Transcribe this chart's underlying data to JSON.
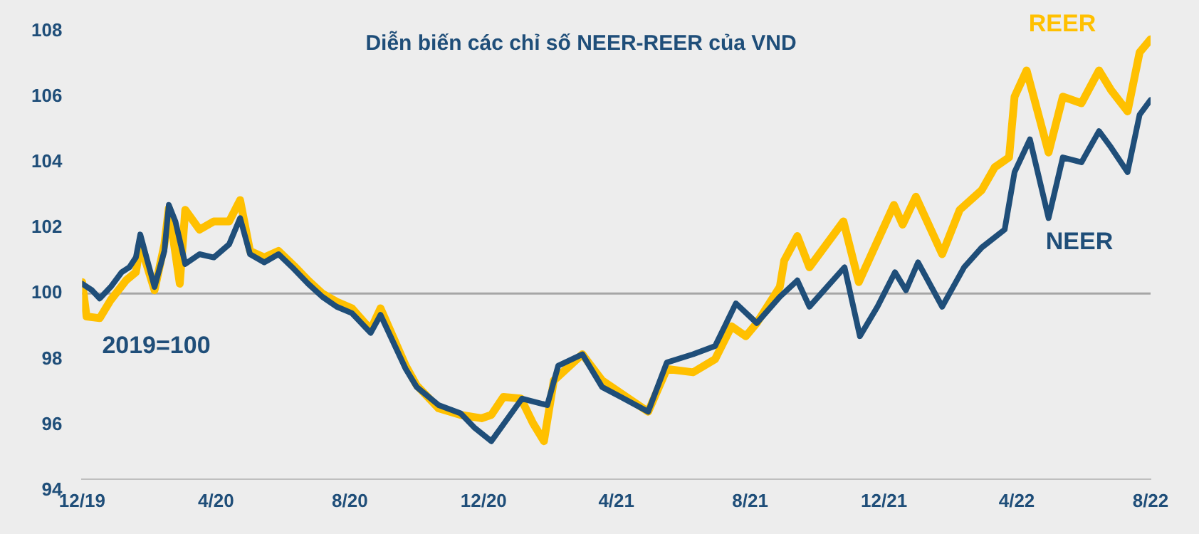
{
  "chart_data": {
    "type": "line",
    "title": "Diễn biến các chỉ số NEER-REER của VND",
    "annotations": [
      "2019=100"
    ],
    "xlim": [
      "2019-12-01",
      "2022-08-01"
    ],
    "xticks": [
      {
        "value": "2019-12",
        "label": "12/19"
      },
      {
        "value": "2020-04",
        "label": "4/20"
      },
      {
        "value": "2020-08",
        "label": "8/20"
      },
      {
        "value": "2020-12",
        "label": "12/20"
      },
      {
        "value": "2021-04",
        "label": "4/21"
      },
      {
        "value": "2021-08",
        "label": "8/21"
      },
      {
        "value": "2021-12",
        "label": "12/21"
      },
      {
        "value": "2022-04",
        "label": "4/22"
      },
      {
        "value": "2022-08",
        "label": "8/22"
      }
    ],
    "ylim": [
      94,
      108
    ],
    "yticks": [
      94,
      96,
      98,
      100,
      102,
      104,
      106,
      108
    ],
    "grid": false,
    "legend": false,
    "marker": "none",
    "line_style": "solid",
    "ref_lines": [
      {
        "axis": "y",
        "value": 100,
        "color": "#a6a6a6"
      }
    ],
    "series": [
      {
        "name": "NEER",
        "color": "#1f4e79",
        "x": [
          "2019-12-01",
          "2019-12-10",
          "2019-12-17",
          "2019-12-27",
          "2020-01-06",
          "2020-01-13",
          "2020-01-19",
          "2020-01-23",
          "2020-02-05",
          "2020-02-14",
          "2020-02-18",
          "2020-02-24",
          "2020-03-04",
          "2020-03-17",
          "2020-03-30",
          "2020-04-13",
          "2020-04-23",
          "2020-05-02",
          "2020-05-15",
          "2020-05-28",
          "2020-06-11",
          "2020-06-24",
          "2020-07-07",
          "2020-07-20",
          "2020-08-03",
          "2020-08-20",
          "2020-08-29",
          "2020-09-21",
          "2020-10-01",
          "2020-10-21",
          "2020-11-10",
          "2020-11-23",
          "2020-12-08",
          "2021-01-05",
          "2021-01-28",
          "2021-02-07",
          "2021-03-01",
          "2021-03-19",
          "2021-04-05",
          "2021-04-30",
          "2021-05-17",
          "2021-06-10",
          "2021-06-30",
          "2021-07-19",
          "2021-08-07",
          "2021-08-28",
          "2021-09-13",
          "2021-09-24",
          "2021-10-26",
          "2021-11-09",
          "2021-11-25",
          "2021-12-11",
          "2021-12-21",
          "2022-01-01",
          "2022-01-23",
          "2022-02-12",
          "2022-02-28",
          "2022-03-21",
          "2022-03-30",
          "2022-04-13",
          "2022-04-30",
          "2022-05-13",
          "2022-05-30",
          "2022-06-15",
          "2022-06-26",
          "2022-07-11",
          "2022-07-22",
          "2022-08-01"
        ],
        "values": [
          100.3,
          100.1,
          99.85,
          100.2,
          100.65,
          100.8,
          101.1,
          101.8,
          100.2,
          101.3,
          102.7,
          102.2,
          100.9,
          101.2,
          101.1,
          101.5,
          102.3,
          101.2,
          100.95,
          101.2,
          100.75,
          100.3,
          99.9,
          99.6,
          99.4,
          98.8,
          99.35,
          97.7,
          97.15,
          96.6,
          96.35,
          95.9,
          95.5,
          96.8,
          96.6,
          97.8,
          98.15,
          97.15,
          96.85,
          96.4,
          97.9,
          98.15,
          98.4,
          99.7,
          99.1,
          99.9,
          100.4,
          99.6,
          100.8,
          98.7,
          99.6,
          100.65,
          100.1,
          100.95,
          99.6,
          100.8,
          101.4,
          101.95,
          103.7,
          104.7,
          102.3,
          104.15,
          104.0,
          104.95,
          104.45,
          103.7,
          105.45,
          105.9
        ]
      },
      {
        "name": "REER",
        "color": "#ffc000",
        "x": [
          "2019-12-01",
          "2019-12-05",
          "2019-12-17",
          "2019-12-27",
          "2020-01-10",
          "2020-01-19",
          "2020-01-23",
          "2020-02-05",
          "2020-02-14",
          "2020-02-18",
          "2020-02-28",
          "2020-03-04",
          "2020-03-17",
          "2020-03-30",
          "2020-04-13",
          "2020-04-23",
          "2020-05-02",
          "2020-05-15",
          "2020-05-28",
          "2020-06-11",
          "2020-06-24",
          "2020-07-07",
          "2020-07-20",
          "2020-08-03",
          "2020-08-20",
          "2020-08-29",
          "2020-09-21",
          "2020-10-01",
          "2020-10-21",
          "2020-11-10",
          "2020-11-29",
          "2020-12-08",
          "2020-12-19",
          "2021-01-04",
          "2021-01-15",
          "2021-01-25",
          "2021-02-03",
          "2021-03-01",
          "2021-03-19",
          "2021-04-30",
          "2021-05-17",
          "2021-06-10",
          "2021-06-30",
          "2021-07-15",
          "2021-07-28",
          "2021-08-07",
          "2021-08-28",
          "2021-09-01",
          "2021-09-13",
          "2021-09-24",
          "2021-10-25",
          "2021-11-08",
          "2021-12-10",
          "2021-12-18",
          "2021-12-30",
          "2022-01-23",
          "2022-02-08",
          "2022-02-28",
          "2022-03-12",
          "2022-03-25",
          "2022-03-30",
          "2022-04-10",
          "2022-04-30",
          "2022-05-13",
          "2022-05-30",
          "2022-06-15",
          "2022-06-26",
          "2022-07-11",
          "2022-07-22",
          "2022-08-01"
        ],
        "values": [
          100.35,
          99.3,
          99.25,
          99.8,
          100.4,
          100.65,
          101.5,
          100.1,
          101.5,
          102.6,
          100.3,
          102.55,
          101.95,
          102.2,
          102.2,
          102.85,
          101.3,
          101.1,
          101.3,
          100.85,
          100.4,
          100.0,
          99.75,
          99.55,
          98.9,
          99.55,
          97.8,
          97.2,
          96.5,
          96.3,
          96.2,
          96.3,
          96.85,
          96.8,
          96.05,
          95.5,
          97.35,
          98.15,
          97.35,
          96.4,
          97.7,
          97.6,
          98.0,
          99.0,
          98.7,
          99.1,
          100.2,
          101.0,
          101.75,
          100.8,
          102.2,
          100.35,
          102.7,
          102.1,
          102.95,
          101.2,
          102.55,
          103.15,
          103.85,
          104.15,
          106.0,
          106.8,
          104.3,
          106.0,
          105.8,
          106.8,
          106.2,
          105.55,
          107.35,
          107.75
        ]
      }
    ]
  }
}
